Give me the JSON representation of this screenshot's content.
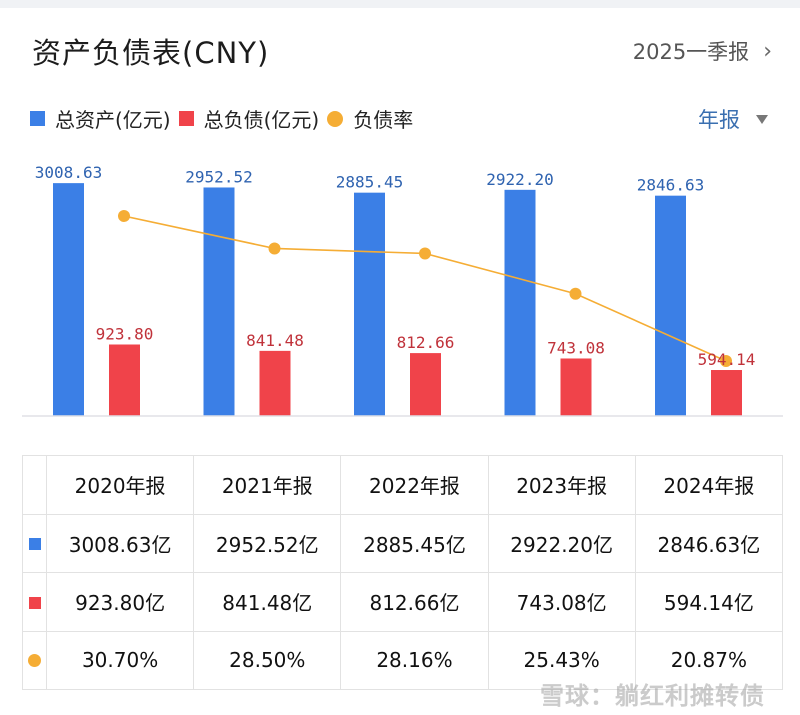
{
  "header": {
    "title": "资产负债表(CNY)",
    "period_link": "2025一季报",
    "period_link_icon": "chevron-right-icon"
  },
  "legend": {
    "items": [
      {
        "label": "总资产(亿元)",
        "color": "#3b7fe6",
        "shape": "square"
      },
      {
        "label": "总负债(亿元)",
        "color": "#f0434a",
        "shape": "square"
      },
      {
        "label": "负债率",
        "color": "#f5ad35",
        "shape": "circle"
      }
    ]
  },
  "frequency_selector": {
    "label": "年报",
    "icon": "caret-down-icon"
  },
  "chart_data": {
    "type": "bar",
    "title": "资产负债表(CNY)",
    "categories": [
      "2020年报",
      "2021年报",
      "2022年报",
      "2023年报",
      "2024年报"
    ],
    "series": [
      {
        "name": "总资产(亿元)",
        "type": "bar",
        "color": "#3b7fe6",
        "label_color": "#2f63b0",
        "values": [
          3008.63,
          2952.52,
          2885.45,
          2922.2,
          2846.63
        ],
        "labels": [
          "3008.63",
          "2952.52",
          "2885.45",
          "2922.20",
          "2846.63"
        ]
      },
      {
        "name": "总负债(亿元)",
        "type": "bar",
        "color": "#f0434a",
        "label_color": "#c0323a",
        "values": [
          923.8,
          841.48,
          812.66,
          743.08,
          594.14
        ],
        "labels": [
          "923.80",
          "841.48",
          "812.66",
          "743.08",
          "594.14"
        ]
      },
      {
        "name": "负债率",
        "type": "line",
        "color": "#f5ad35",
        "unit": "%",
        "values": [
          30.7,
          28.5,
          28.16,
          25.43,
          20.87
        ]
      }
    ],
    "xlabel": "",
    "ylabel": "",
    "grid": false,
    "legend_position": "top-left"
  },
  "table": {
    "headers": [
      "2020年报",
      "2021年报",
      "2022年报",
      "2023年报",
      "2024年报"
    ],
    "rows": [
      {
        "marker": "square",
        "color": "#3b7fe6",
        "cells": [
          "3008.63亿",
          "2952.52亿",
          "2885.45亿",
          "2922.20亿",
          "2846.63亿"
        ]
      },
      {
        "marker": "square",
        "color": "#f0434a",
        "cells": [
          "923.80亿",
          "841.48亿",
          "812.66亿",
          "743.08亿",
          "594.14亿"
        ]
      },
      {
        "marker": "circle",
        "color": "#f5ad35",
        "cells": [
          "30.70%",
          "28.50%",
          "28.16%",
          "25.43%",
          "20.87%"
        ]
      }
    ]
  },
  "watermark": "雪球：躺红利摊转债"
}
